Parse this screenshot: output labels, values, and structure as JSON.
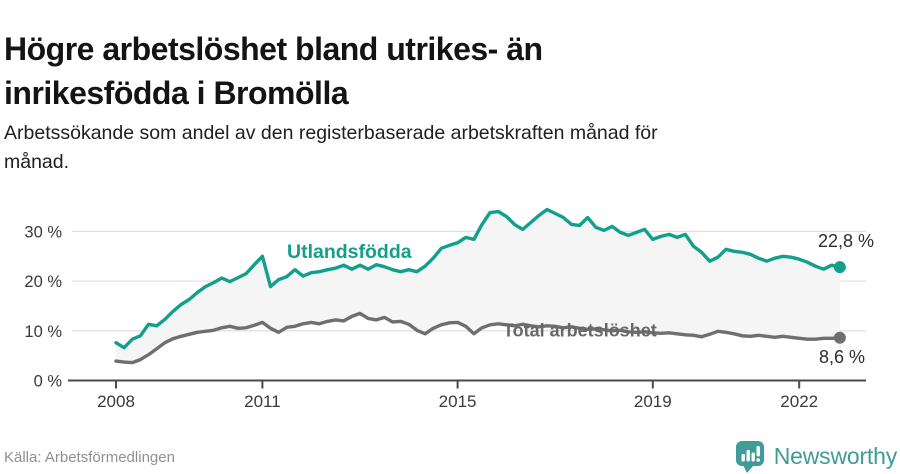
{
  "header": {
    "title": "Högre arbetslöshet bland utrikes- än inrikesfödda i Bromölla",
    "subtitle": "Arbetssökande som andel av den registerbaserade arbetskraften månad för månad."
  },
  "footer": {
    "source": "Källa: Arbetsförmedlingen",
    "brand": "Newsworthy",
    "brand_color": "#3F9C96",
    "brand_icon": "bar-chart-speech-bubble"
  },
  "colors": {
    "foreign_born": "#12A08D",
    "total": "#6F6F6F",
    "grid": "#e0e0e0",
    "axis": "#4a4a4a",
    "axis_text": "#3a3a3a",
    "end_label_text": "#2d2d2d",
    "band_fill": "#f5f5f5"
  },
  "chart_data": {
    "type": "line",
    "title": "Högre arbetslöshet bland utrikes- än inrikesfödda i Bromölla",
    "subtitle": "Arbetssökande som andel av den registerbaserade arbetskraften månad för månad.",
    "x_start_year": 2008,
    "points_per_year": 6,
    "x_tick_years": [
      2008,
      2011,
      2015,
      2019,
      2022
    ],
    "x_tick_labels": [
      "2008",
      "2011",
      "2015",
      "2019",
      "2022"
    ],
    "y_ticks": [
      0,
      10,
      20,
      30
    ],
    "y_tick_suffix": " %",
    "ylim": [
      0,
      36
    ],
    "grid": true,
    "legend_position": "inline-labels",
    "area_between_series_filled": true,
    "series": [
      {
        "name": "Utlandsfödda",
        "color": "#12A08D",
        "end_label": "22,8 %",
        "end_value": 22.8,
        "values": [
          7.6,
          6.6,
          8.3,
          9.0,
          11.3,
          11.0,
          12.3,
          13.9,
          15.3,
          16.3,
          17.7,
          18.9,
          19.7,
          20.6,
          19.9,
          20.7,
          21.5,
          23.3,
          25.0,
          18.9,
          20.3,
          20.9,
          22.3,
          21.0,
          21.7,
          21.9,
          22.3,
          22.6,
          23.2,
          22.4,
          23.2,
          22.4,
          23.3,
          22.9,
          22.3,
          21.9,
          22.3,
          21.9,
          23.0,
          24.6,
          26.6,
          27.2,
          27.7,
          28.8,
          28.4,
          31.4,
          33.8,
          34.0,
          33.0,
          31.4,
          30.4,
          31.8,
          33.2,
          34.4,
          33.6,
          32.8,
          31.4,
          31.2,
          32.8,
          30.8,
          30.2,
          31.0,
          29.8,
          29.2,
          29.8,
          30.4,
          28.4,
          29.0,
          29.4,
          28.8,
          29.4,
          27.0,
          25.8,
          24.0,
          24.8,
          26.4,
          26.0,
          25.8,
          25.4,
          24.6,
          24.0,
          24.6,
          25.0,
          24.8,
          24.4,
          23.8,
          23.0,
          22.4,
          23.2,
          22.8
        ]
      },
      {
        "name": "Total arbetslöshet",
        "color": "#6F6F6F",
        "end_label": "8,6 %",
        "end_value": 8.6,
        "values": [
          3.9,
          3.7,
          3.6,
          4.2,
          5.2,
          6.4,
          7.6,
          8.4,
          8.9,
          9.3,
          9.7,
          9.9,
          10.1,
          10.6,
          10.9,
          10.5,
          10.6,
          11.1,
          11.7,
          10.5,
          9.7,
          10.7,
          10.9,
          11.4,
          11.7,
          11.4,
          11.9,
          12.2,
          12.0,
          12.9,
          13.5,
          12.5,
          12.2,
          12.7,
          11.8,
          11.9,
          11.3,
          10.1,
          9.4,
          10.5,
          11.2,
          11.6,
          11.7,
          10.9,
          9.4,
          10.6,
          11.2,
          11.4,
          11.2,
          11.0,
          11.3,
          11.0,
          10.8,
          11.0,
          10.9,
          10.6,
          10.8,
          10.5,
          10.3,
          10.4,
          10.2,
          10.0,
          10.1,
          9.8,
          9.7,
          9.8,
          9.6,
          9.5,
          9.6,
          9.4,
          9.2,
          9.1,
          8.8,
          9.3,
          9.9,
          9.7,
          9.4,
          9.0,
          8.9,
          9.1,
          8.9,
          8.7,
          8.9,
          8.7,
          8.5,
          8.3,
          8.3,
          8.5,
          8.5,
          8.6
        ]
      }
    ]
  }
}
